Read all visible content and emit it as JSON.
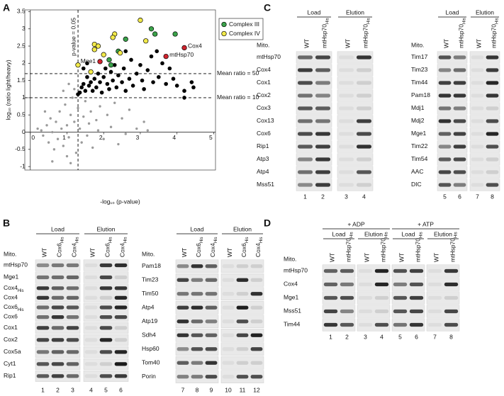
{
  "panel_labels": [
    "A",
    "B",
    "C",
    "D"
  ],
  "chart_data": {
    "type": "scatter",
    "xlabel": "-log₁₀ (p-value)",
    "ylabel": "log₁₀ (ratio light/heavy)",
    "xlim": [
      -0.15,
      5.05
    ],
    "ylim": [
      -1.1,
      3.55
    ],
    "xticks": [
      0,
      1,
      2,
      3,
      4,
      5
    ],
    "yticks": [
      -1,
      -0.5,
      0,
      0.5,
      1,
      1.5,
      2,
      2.5,
      3,
      3.5
    ],
    "reference_lines": [
      {
        "axis": "x",
        "value": 1.301,
        "label": "p-value = 0.05"
      },
      {
        "axis": "y",
        "value": 1.699,
        "label": "Mean ratio = 50"
      },
      {
        "axis": "y",
        "value": 1,
        "label": "Mean ratio = 10"
      }
    ],
    "legend": "top-right",
    "series": [
      {
        "color": "#9a9a9a",
        "x": [
          0.3,
          0.35,
          0.45,
          0.5,
          0.55,
          0.6,
          0.65,
          0.7,
          0.75,
          0.8,
          0.85,
          0.9,
          0.95,
          1.0,
          1.05,
          1.1,
          1.15,
          1.2,
          1.25,
          1.3,
          1.35,
          1.4,
          1.45,
          1.5,
          1.55,
          1.6,
          1.65,
          1.7,
          1.8,
          1.85,
          1.9,
          2.0,
          2.1,
          2.2,
          2.3,
          2.4,
          2.5,
          2.7,
          2.9,
          3.1,
          3.2,
          1.05,
          0.9,
          1.2,
          0.6,
          1.1,
          0.4,
          0.2,
          1.0,
          2.6
        ],
        "values": [
          0.05,
          -0.1,
          0.2,
          -0.3,
          0.4,
          0.0,
          -0.5,
          0.3,
          -0.2,
          0.6,
          0.1,
          -0.4,
          0.8,
          0.2,
          -0.15,
          0.5,
          1.0,
          0.3,
          -0.6,
          0.7,
          0.1,
          -0.3,
          0.45,
          0.9,
          -0.1,
          0.25,
          0.6,
          -0.45,
          0.35,
          0.05,
          0.75,
          -0.2,
          0.5,
          0.15,
          0.85,
          -0.35,
          0.4,
          0.65,
          0.1,
          0.3,
          0.05,
          1.4,
          1.2,
          1.25,
          -0.85,
          -0.9,
          0.6,
          0.1,
          -0.7,
          -0.05
        ]
      },
      {
        "color": "#000000",
        "x": [
          1.35,
          1.4,
          1.45,
          1.5,
          1.55,
          1.6,
          1.65,
          1.7,
          1.75,
          1.8,
          1.85,
          1.9,
          1.95,
          2.0,
          2.05,
          2.1,
          2.15,
          2.2,
          2.25,
          2.3,
          2.35,
          2.4,
          2.5,
          2.55,
          2.6,
          2.7,
          2.75,
          2.8,
          2.9,
          3.0,
          3.05,
          3.1,
          3.2,
          3.3,
          3.35,
          3.5,
          3.6,
          3.7,
          3.8,
          3.9,
          4.0,
          4.2,
          4.4,
          4.45,
          4.2,
          1.45,
          1.55,
          1.3,
          2.6,
          3.45
        ],
        "values": [
          1.15,
          1.3,
          1.4,
          1.2,
          1.6,
          1.35,
          1.45,
          1.2,
          1.55,
          1.3,
          1.7,
          1.45,
          1.15,
          1.6,
          1.85,
          1.4,
          1.25,
          1.75,
          1.5,
          1.95,
          1.3,
          1.65,
          1.45,
          1.85,
          1.2,
          1.55,
          2.1,
          1.35,
          1.7,
          1.95,
          1.5,
          1.25,
          1.8,
          2.2,
          1.45,
          1.6,
          2.0,
          1.4,
          1.85,
          1.55,
          1.35,
          1.2,
          1.45,
          1.3,
          1.0,
          1.85,
          2.0,
          1.1,
          2.35,
          2.35
        ]
      },
      {
        "name": "Complex III",
        "color": "#3aa24a",
        "x": [
          3.3,
          3.4,
          3.95,
          2.6,
          2.4,
          2.15,
          2.2
        ],
        "values": [
          3.0,
          2.85,
          2.85,
          2.7,
          2.35,
          2.1,
          1.95
        ]
      },
      {
        "name": "Complex IV",
        "color": "#f2ea4a",
        "x": [
          3.0,
          2.3,
          2.25,
          1.75,
          1.85,
          1.75,
          2.0,
          1.3,
          1.65,
          2.45,
          3.15
        ],
        "values": [
          3.25,
          2.85,
          2.75,
          2.55,
          2.5,
          2.4,
          2.25,
          1.95,
          1.75,
          2.3,
          2.65
        ]
      },
      {
        "color": "#d0242e",
        "x": [
          4.2,
          3.7,
          1.9
        ],
        "values": [
          2.45,
          2.2,
          2.05
        ],
        "point_labels": [
          "Cox4",
          "mtHsp70",
          "Mge1"
        ]
      }
    ]
  },
  "blots": [
    {
      "lane_header": "Mito.",
      "groups": [
        {
          "label": "Load",
          "lanes": [
            {
              "text": "WT",
              "number": 1
            },
            {
              "text": "Cox6",
              "sub": "His",
              "number": 2
            },
            {
              "text": "Cox4",
              "sub": "His",
              "number": 3
            }
          ]
        },
        {
          "label": "Elution",
          "lanes": [
            {
              "text": "WT",
              "number": 4
            },
            {
              "text": "Cox6",
              "sub": "His",
              "number": 5
            },
            {
              "text": "Cox4",
              "sub": "His",
              "number": 6
            }
          ]
        }
      ],
      "rows": [
        [
          {
            "text": "mtHsp70"
          }
        ],
        [
          {
            "text": "Mge1"
          }
        ],
        [
          {
            "text": "Cox4",
            "sub": "His"
          },
          {
            "text": "Cox4"
          }
        ],
        [
          {
            "text": "Cox6",
            "sub": "His"
          },
          {
            "text": "Cox6"
          }
        ],
        [
          {
            "text": "Cox1"
          }
        ],
        [
          {
            "text": "Cox2"
          }
        ],
        [
          {
            "text": "Cox5a"
          }
        ],
        [
          {
            "text": "Cyt1"
          }
        ],
        [
          {
            "text": "Rip1"
          }
        ]
      ]
    },
    {
      "lane_header": "Mito.",
      "groups": [
        {
          "label": "Load",
          "lanes": [
            {
              "text": "WT",
              "number": 7
            },
            {
              "text": "Cox6",
              "sub": "His",
              "number": 8
            },
            {
              "text": "Cox4",
              "sub": "His",
              "number": 9
            }
          ]
        },
        {
          "label": "Elution",
          "lanes": [
            {
              "text": "WT",
              "number": 10
            },
            {
              "text": "Cox6",
              "sub": "His",
              "number": 11
            },
            {
              "text": "Cox4",
              "sub": "His",
              "number": 12
            }
          ]
        }
      ],
      "rows": [
        [
          {
            "text": "Pam18"
          }
        ],
        [
          {
            "text": "Tim23"
          }
        ],
        [
          {
            "text": "Tim50"
          }
        ],
        [
          {
            "text": "Atp4"
          }
        ],
        [
          {
            "text": "Atp19"
          }
        ],
        [
          {
            "text": "Sdh4"
          }
        ],
        [
          {
            "text": "Hsp60"
          }
        ],
        [
          {
            "text": "Tom40"
          }
        ],
        [
          {
            "text": "Porin"
          }
        ]
      ]
    },
    {
      "lane_header": "Mito.",
      "groups": [
        {
          "label": "Load",
          "lanes": [
            {
              "text": "WT",
              "number": 1
            },
            {
              "text": "mtHsp70",
              "sub": "His",
              "number": 2
            }
          ]
        },
        {
          "label": "Elution",
          "lanes": [
            {
              "text": "WT",
              "number": 3
            },
            {
              "text": "mtHsp70",
              "sub": "His",
              "number": 4
            }
          ]
        }
      ],
      "rows": [
        [
          {
            "text": "mtHsp70"
          }
        ],
        [
          {
            "text": "Cox4"
          }
        ],
        [
          {
            "text": "Cox1"
          }
        ],
        [
          {
            "text": "Cox2"
          }
        ],
        [
          {
            "text": "Cox3"
          }
        ],
        [
          {
            "text": "Cox13"
          }
        ],
        [
          {
            "text": "Cox6"
          }
        ],
        [
          {
            "text": "Rip1"
          }
        ],
        [
          {
            "text": "Atp3"
          }
        ],
        [
          {
            "text": "Atp4"
          }
        ],
        [
          {
            "text": "Mss51"
          }
        ]
      ]
    },
    {
      "lane_header": "Mito.",
      "groups": [
        {
          "label": "Load",
          "lanes": [
            {
              "text": "WT",
              "number": 5
            },
            {
              "text": "mtHsp70",
              "sub": "His",
              "number": 6
            }
          ]
        },
        {
          "label": "Elution",
          "lanes": [
            {
              "text": "WT",
              "number": 7
            },
            {
              "text": "mtHsp70",
              "sub": "His",
              "number": 8
            }
          ]
        }
      ],
      "rows": [
        [
          {
            "text": "Tim17"
          }
        ],
        [
          {
            "text": "Tim23"
          }
        ],
        [
          {
            "text": "Tim44"
          }
        ],
        [
          {
            "text": "Pam18"
          }
        ],
        [
          {
            "text": "Mdj1"
          }
        ],
        [
          {
            "text": "Mdj2"
          }
        ],
        [
          {
            "text": "Mge1"
          }
        ],
        [
          {
            "text": "Tim22"
          }
        ],
        [
          {
            "text": "Tim54"
          }
        ],
        [
          {
            "text": "AAC"
          }
        ],
        [
          {
            "text": "DIC"
          }
        ]
      ]
    },
    {
      "lane_header": "Mito.",
      "super_groups": [
        {
          "label": "+ ADP",
          "groups": [
            {
              "label": "Load",
              "lanes": [
                {
                  "text": "WT",
                  "number": 1
                },
                {
                  "text": "mtHsp70",
                  "sub": "His",
                  "number": 2
                }
              ]
            },
            {
              "label": "Elution",
              "lanes": [
                {
                  "text": "WT",
                  "number": 3
                },
                {
                  "text": "mtHsp70",
                  "sub": "His",
                  "number": 4
                }
              ]
            }
          ]
        },
        {
          "label": "+ ATP",
          "groups": [
            {
              "label": "Load",
              "lanes": [
                {
                  "text": "WT",
                  "number": 5
                },
                {
                  "text": "mtHsp70",
                  "sub": "His",
                  "number": 6
                }
              ]
            },
            {
              "label": "Elution",
              "lanes": [
                {
                  "text": "WT",
                  "number": 7
                },
                {
                  "text": "mtHsp70",
                  "sub": "His",
                  "number": 8
                }
              ]
            }
          ]
        }
      ],
      "rows": [
        [
          {
            "text": "mtHsp70"
          }
        ],
        [
          {
            "text": "Cox4"
          }
        ],
        [
          {
            "text": "Mge1"
          }
        ],
        [
          {
            "text": "Mss51"
          }
        ],
        [
          {
            "text": "Tim44"
          }
        ]
      ]
    }
  ]
}
